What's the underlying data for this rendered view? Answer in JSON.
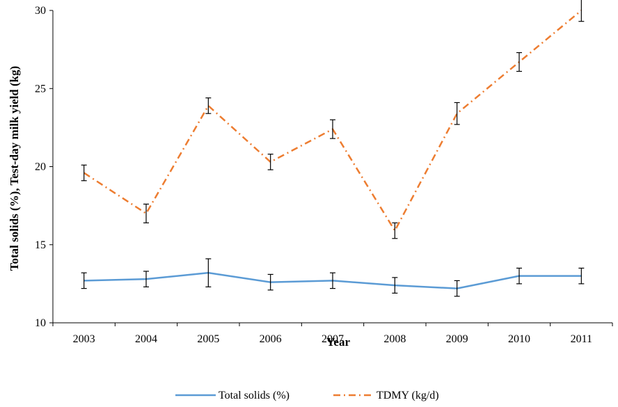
{
  "chart_data": {
    "type": "line",
    "x": [
      "2003",
      "2004",
      "2005",
      "2006",
      "2007",
      "2008",
      "2009",
      "2010",
      "2011"
    ],
    "series": [
      {
        "name": "Total solids (%)",
        "color": "#5b9bd5",
        "style": "solid",
        "values": [
          12.7,
          12.8,
          13.2,
          12.6,
          12.7,
          12.4,
          12.2,
          13.0,
          13.0
        ],
        "error": [
          0.5,
          0.5,
          0.9,
          0.5,
          0.5,
          0.5,
          0.5,
          0.5,
          0.5
        ]
      },
      {
        "name": "TDMY (kg/d)",
        "color": "#ed7d31",
        "style": "dash-dot",
        "values": [
          19.6,
          17.0,
          23.9,
          20.3,
          22.4,
          15.9,
          23.4,
          26.7,
          30.0
        ],
        "error": [
          0.5,
          0.6,
          0.5,
          0.5,
          0.6,
          0.5,
          0.7,
          0.6,
          0.7
        ]
      }
    ],
    "xlabel": "Year",
    "ylabel": "Total solids (%), Test-day milk yield (kg)",
    "ylim": [
      10,
      30
    ],
    "yticks": [
      "10",
      "15",
      "20",
      "25",
      "30"
    ],
    "grid": false,
    "legend_position": "bottom"
  }
}
